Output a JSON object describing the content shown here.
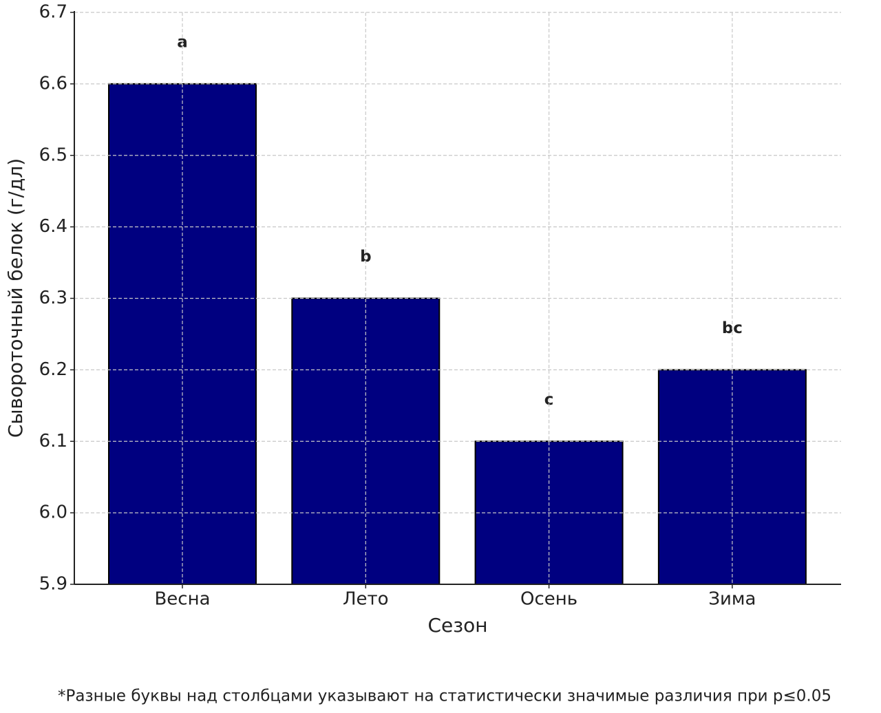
{
  "chart_data": {
    "type": "bar",
    "categories": [
      "Весна",
      "Лето",
      "Осень",
      "Зима"
    ],
    "values": [
      6.6,
      6.3,
      6.1,
      6.2
    ],
    "annotations": [
      "a",
      "b",
      "c",
      "bc"
    ],
    "color": "#000080",
    "xlabel": "Сезон",
    "ylabel": "Сывороточный белок (г/дл)",
    "ylim": [
      5.9,
      6.7
    ],
    "yticks": [
      5.9,
      {
        "value": 6,
        "label": "6.0"
      },
      6.1,
      6.2,
      6.3,
      6.4,
      6.5,
      6.6,
      6.7
    ],
    "grid": true,
    "footnote": "*Разные буквы над столбцами указывают на статистически значимые различия при p≤0.05"
  }
}
